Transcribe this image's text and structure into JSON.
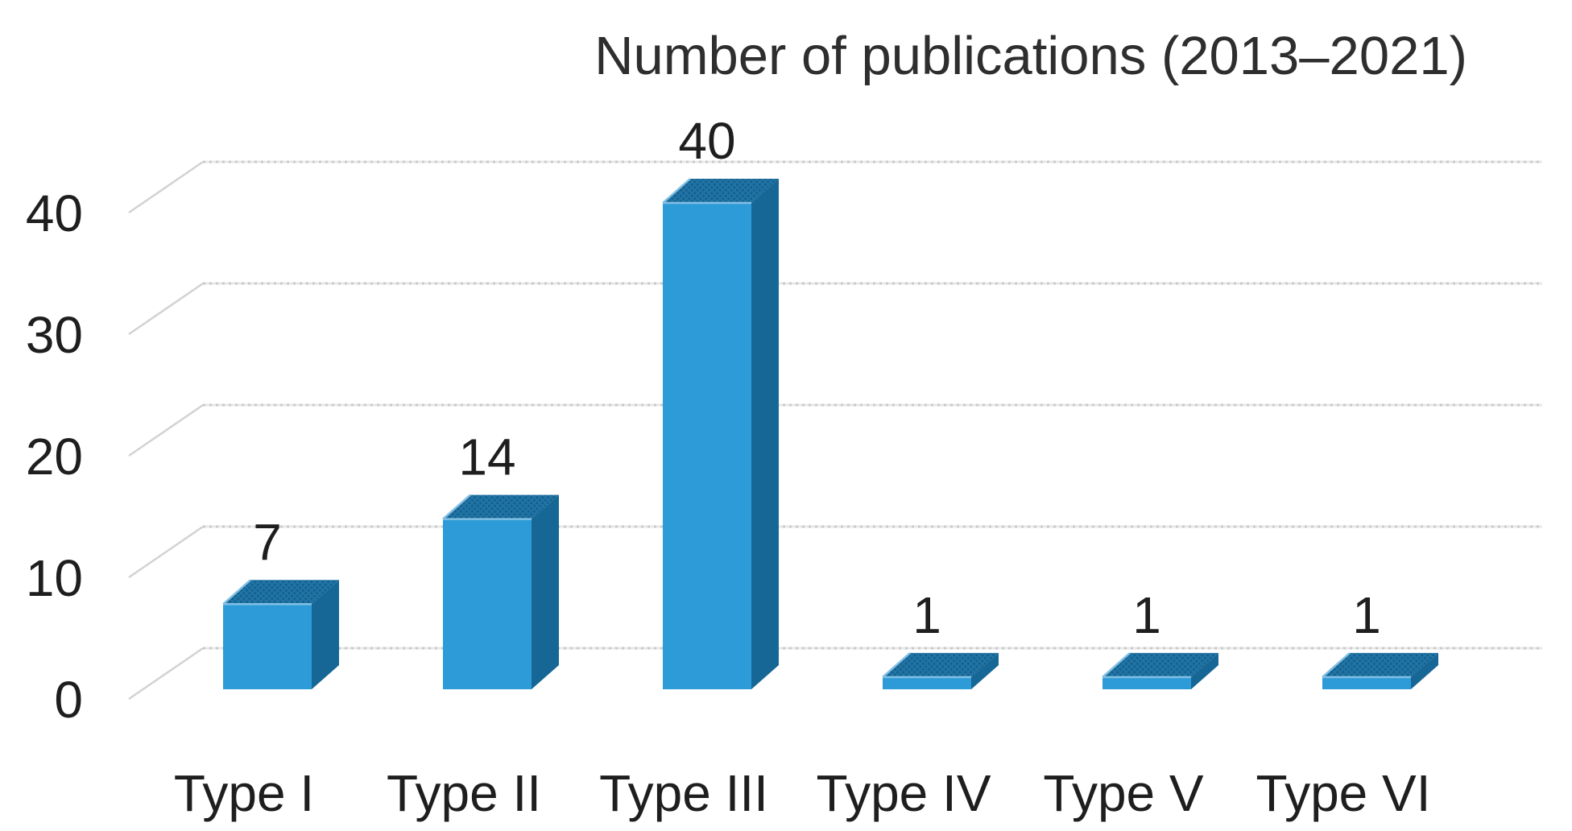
{
  "page": {
    "background": "#ffffff"
  },
  "chart_data": {
    "type": "bar",
    "variant": "3d-column",
    "title": "Number of publications (2013–2021)",
    "categories": [
      "Type I",
      "Type II",
      "Type III",
      "Type IV",
      "Type V",
      "Type VI"
    ],
    "values": [
      7,
      14,
      40,
      1,
      1,
      1
    ],
    "data_labels": [
      "7",
      "14",
      "40",
      "1",
      "1",
      "1"
    ],
    "xlabel": "",
    "ylabel": "",
    "yticks": [
      0,
      10,
      20,
      30,
      40
    ],
    "ytick_labels": [
      "0",
      "10",
      "20",
      "30",
      "40"
    ],
    "ylim": [
      0,
      45
    ],
    "grid": true,
    "grid_style": "dotted",
    "legend": false,
    "colors": {
      "bar_front": "#2E9BD9",
      "bar_top": "#1F74A6",
      "bar_top_dot": "#175E88",
      "bar_side": "#166795",
      "edge_highlight": "#82BFE4",
      "gridline": "#C9C9C9",
      "gridline_base": "#E8E8E8",
      "diagonal": "#D2D2D2",
      "text": "#1E1E1E",
      "title_text": "#2E2E2E"
    }
  }
}
